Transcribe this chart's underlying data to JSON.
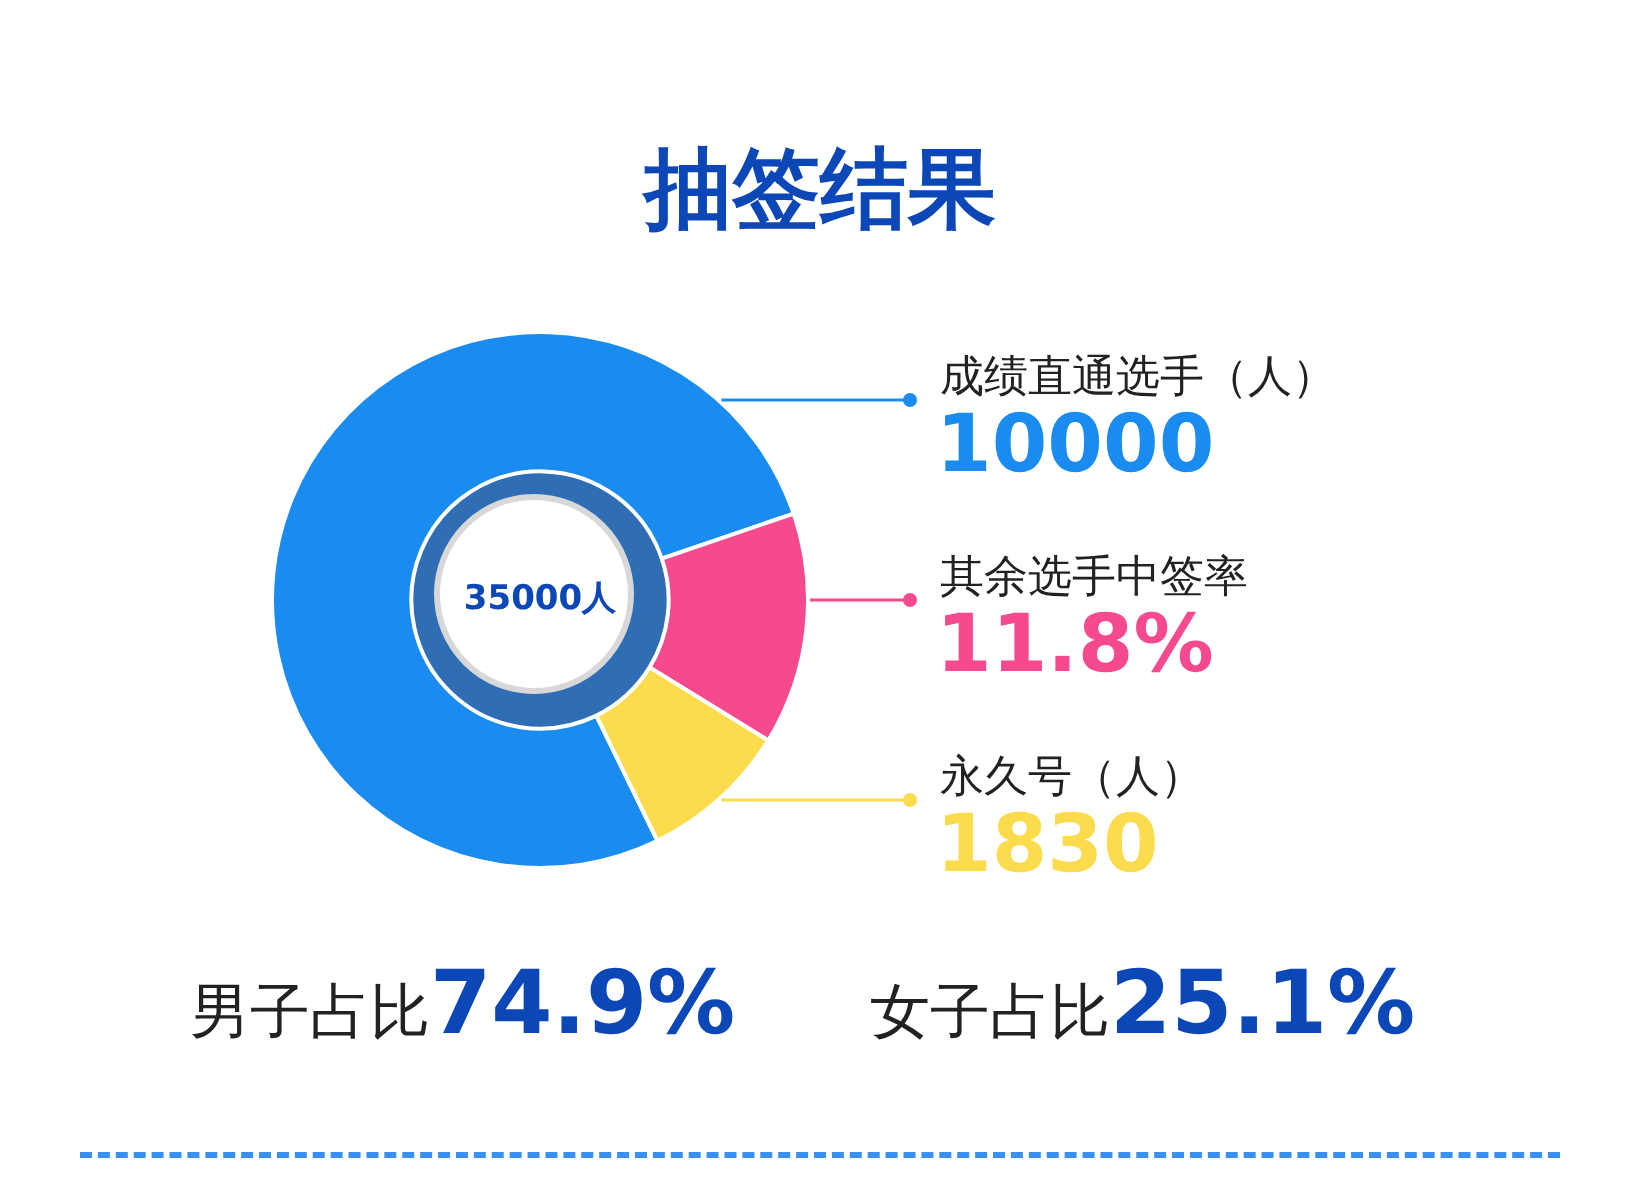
{
  "chart_data": {
    "type": "donut",
    "title": "抽签结果",
    "categories": [
      "成绩直通选手（人）",
      "其余选手中签率",
      "永久号（人）"
    ],
    "values": [
      77,
      14,
      9
    ],
    "colors": [
      "#1a8cf0",
      "#f54a8e",
      "#fcdb4c"
    ],
    "annotations": [
      "35000人",
      "10000",
      "11.8%",
      "1830",
      "男子占比74.9%",
      "女子占比25.1%"
    ],
    "legend": "right"
  }
}
